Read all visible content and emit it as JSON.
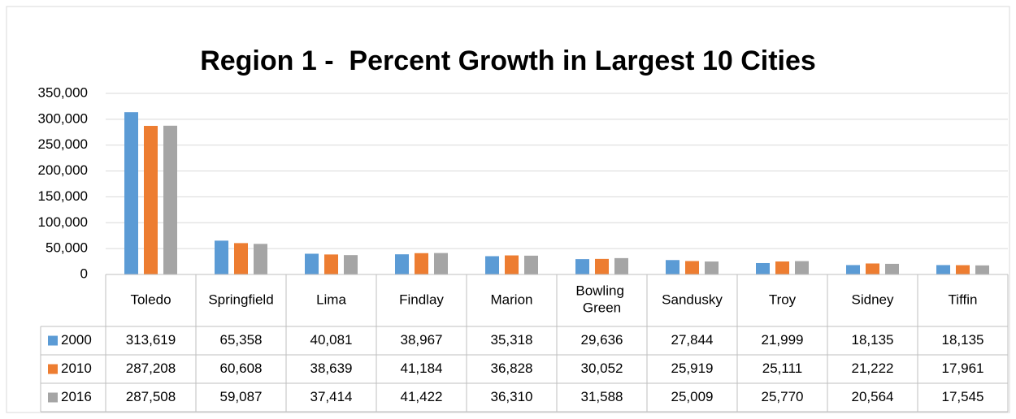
{
  "chart_data": {
    "type": "bar",
    "title": "Region 1 -  Percent Growth in Largest 10 Cities",
    "categories": [
      "Toledo",
      "Springfield",
      "Lima",
      "Findlay",
      "Marion",
      "Bowling Green",
      "Sandusky",
      "Troy",
      "Sidney",
      "Tiffin"
    ],
    "series": [
      {
        "name": "2000",
        "color": "#5b9bd5",
        "values": [
          313619,
          65358,
          40081,
          38967,
          35318,
          29636,
          27844,
          21999,
          18135,
          18135
        ],
        "value_labels": [
          "313,619",
          "65,358",
          "40,081",
          "38,967",
          "35,318",
          "29,636",
          "27,844",
          "21,999",
          "18,135",
          "18,135"
        ]
      },
      {
        "name": "2010",
        "color": "#ed7d31",
        "values": [
          287208,
          60608,
          38639,
          41184,
          36828,
          30052,
          25919,
          25111,
          21222,
          17961
        ],
        "value_labels": [
          "287,208",
          "60,608",
          "38,639",
          "41,184",
          "36,828",
          "30,052",
          "25,919",
          "25,111",
          "21,222",
          "17,961"
        ]
      },
      {
        "name": "2016",
        "color": "#a5a5a5",
        "values": [
          287508,
          59087,
          37414,
          41422,
          36310,
          31588,
          25009,
          25770,
          20564,
          17545
        ],
        "value_labels": [
          "287,508",
          "59,087",
          "37,414",
          "41,422",
          "36,310",
          "31,588",
          "25,009",
          "25,770",
          "20,564",
          "17,545"
        ]
      }
    ],
    "ylim": [
      0,
      350000
    ],
    "yticks": [
      0,
      {
        "value": 50000,
        "label": "50,000"
      },
      {
        "value": 100000,
        "label": "100,000"
      },
      {
        "value": 150000,
        "label": "150,000"
      },
      {
        "value": 200000,
        "label": "200,000"
      },
      {
        "value": 250000,
        "label": "250,000"
      },
      {
        "value": 300000,
        "label": "300,000"
      },
      {
        "value": 350000,
        "label": "350,000"
      }
    ],
    "grid": true
  }
}
